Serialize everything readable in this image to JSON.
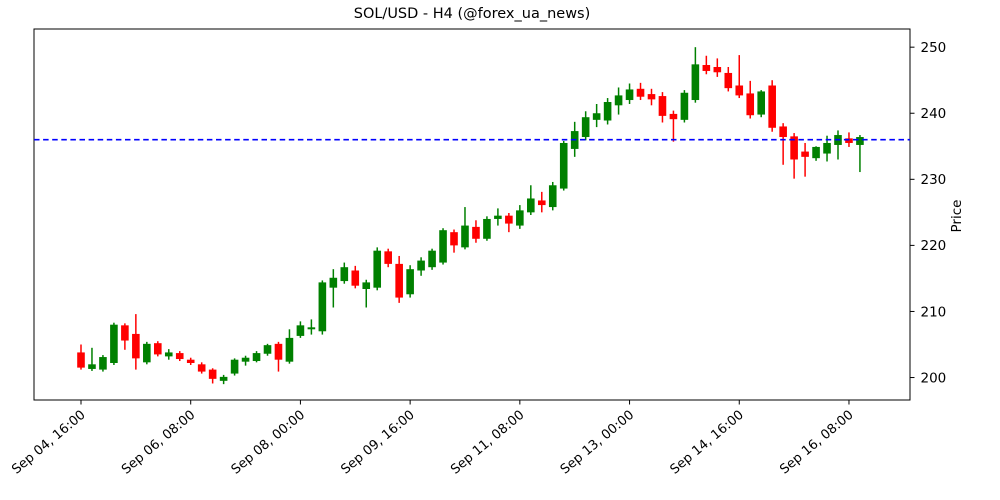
{
  "page": {
    "background": "#ffffff"
  },
  "chart_data": {
    "type": "candlestick",
    "title": "SOL/USD - H4 (@forex_ua_news)",
    "ylabel": "Price",
    "ylabel_side": "right",
    "grid": false,
    "ylim": [
      196.6,
      252.75
    ],
    "y_ticks": [
      200,
      210,
      220,
      230,
      240,
      250
    ],
    "x_ticks": [
      {
        "index": 0,
        "label": "Sep 04, 16:00"
      },
      {
        "index": 10,
        "label": "Sep 06, 08:00"
      },
      {
        "index": 20,
        "label": "Sep 08, 00:00"
      },
      {
        "index": 30,
        "label": "Sep 09, 16:00"
      },
      {
        "index": 40,
        "label": "Sep 11, 08:00"
      },
      {
        "index": 50,
        "label": "Sep 13, 00:00"
      },
      {
        "index": 60,
        "label": "Sep 14, 16:00"
      },
      {
        "index": 70,
        "label": "Sep 16, 08:00"
      }
    ],
    "hline": {
      "price": 236.0,
      "color": "#0000ff",
      "style": "dashed"
    },
    "colors": {
      "up": "#008000",
      "down": "#ff0000",
      "axes": "#000000",
      "background": "#ffffff"
    },
    "candles": {
      "format": [
        "open",
        "high",
        "low",
        "close"
      ],
      "ohlc": [
        [
          203.8,
          205.0,
          201.2,
          201.5
        ],
        [
          201.3,
          204.5,
          201.0,
          202.0
        ],
        [
          201.2,
          203.4,
          200.9,
          203.1
        ],
        [
          202.2,
          208.3,
          201.9,
          208.0
        ],
        [
          207.9,
          208.2,
          204.2,
          205.6
        ],
        [
          206.6,
          209.6,
          201.2,
          202.9
        ],
        [
          202.3,
          205.4,
          202.0,
          205.1
        ],
        [
          205.2,
          205.5,
          203.2,
          203.5
        ],
        [
          203.2,
          204.3,
          202.7,
          203.8
        ],
        [
          203.7,
          204.0,
          202.5,
          202.8
        ],
        [
          202.7,
          203.0,
          201.9,
          202.2
        ],
        [
          202.0,
          202.3,
          200.6,
          200.9
        ],
        [
          201.2,
          201.4,
          199.1,
          199.8
        ],
        [
          199.5,
          200.4,
          199.0,
          200.1
        ],
        [
          200.6,
          202.9,
          200.3,
          202.7
        ],
        [
          202.4,
          203.3,
          201.8,
          203.0
        ],
        [
          202.5,
          204.0,
          202.3,
          203.7
        ],
        [
          203.6,
          205.1,
          203.3,
          204.9
        ],
        [
          205.1,
          205.4,
          200.9,
          202.7
        ],
        [
          202.4,
          207.3,
          202.1,
          206.0
        ],
        [
          206.3,
          208.5,
          206.0,
          207.9
        ],
        [
          207.3,
          208.8,
          206.5,
          207.6
        ],
        [
          207.0,
          214.7,
          206.5,
          214.4
        ],
        [
          213.6,
          216.4,
          210.6,
          215.1
        ],
        [
          214.6,
          217.4,
          214.2,
          216.7
        ],
        [
          216.2,
          216.9,
          213.5,
          213.9
        ],
        [
          213.4,
          214.8,
          210.6,
          214.4
        ],
        [
          213.6,
          219.7,
          213.2,
          219.2
        ],
        [
          219.1,
          219.5,
          216.7,
          217.2
        ],
        [
          217.2,
          218.4,
          211.3,
          212.1
        ],
        [
          212.6,
          217.0,
          212.1,
          216.4
        ],
        [
          216.2,
          218.2,
          215.4,
          217.7
        ],
        [
          216.7,
          219.5,
          216.3,
          219.2
        ],
        [
          217.4,
          222.6,
          217.1,
          222.3
        ],
        [
          222.0,
          222.4,
          218.9,
          220.0
        ],
        [
          219.7,
          225.8,
          219.4,
          223.0
        ],
        [
          222.8,
          223.8,
          220.4,
          221.0
        ],
        [
          221.0,
          224.4,
          220.7,
          224.0
        ],
        [
          224.0,
          225.6,
          223.0,
          224.5
        ],
        [
          224.5,
          224.9,
          222.0,
          223.3
        ],
        [
          223.0,
          226.1,
          222.5,
          225.3
        ],
        [
          225.0,
          229.1,
          224.6,
          227.1
        ],
        [
          226.8,
          228.1,
          225.0,
          226.1
        ],
        [
          225.8,
          229.6,
          225.3,
          229.1
        ],
        [
          228.6,
          235.8,
          228.3,
          235.5
        ],
        [
          234.6,
          238.7,
          233.4,
          237.3
        ],
        [
          236.4,
          240.3,
          235.9,
          239.4
        ],
        [
          239.0,
          241.4,
          237.9,
          240.0
        ],
        [
          238.9,
          242.3,
          238.3,
          241.7
        ],
        [
          241.2,
          243.9,
          239.8,
          242.7
        ],
        [
          242.0,
          244.5,
          241.4,
          243.6
        ],
        [
          243.7,
          244.6,
          242.0,
          242.5
        ],
        [
          242.9,
          243.7,
          241.2,
          242.1
        ],
        [
          242.6,
          243.2,
          238.6,
          239.6
        ],
        [
          239.9,
          240.4,
          235.7,
          239.1
        ],
        [
          239.0,
          243.5,
          238.6,
          243.1
        ],
        [
          242.0,
          250.0,
          241.6,
          247.4
        ],
        [
          247.3,
          248.7,
          245.9,
          246.4
        ],
        [
          247.0,
          248.3,
          245.5,
          246.2
        ],
        [
          246.1,
          247.0,
          243.3,
          243.8
        ],
        [
          244.2,
          248.8,
          242.3,
          242.7
        ],
        [
          243.0,
          244.9,
          239.2,
          239.7
        ],
        [
          239.8,
          243.5,
          239.4,
          243.3
        ],
        [
          244.2,
          245.0,
          237.2,
          237.8
        ],
        [
          238.0,
          238.5,
          232.2,
          236.4
        ],
        [
          236.5,
          237.0,
          230.1,
          233.0
        ],
        [
          234.2,
          235.5,
          230.4,
          233.4
        ],
        [
          233.2,
          235.0,
          232.8,
          234.9
        ],
        [
          233.9,
          236.6,
          232.7,
          235.5
        ],
        [
          235.2,
          237.4,
          233.0,
          236.7
        ],
        [
          236.2,
          237.1,
          234.9,
          235.5
        ],
        [
          235.2,
          236.7,
          231.1,
          236.4
        ]
      ]
    }
  }
}
